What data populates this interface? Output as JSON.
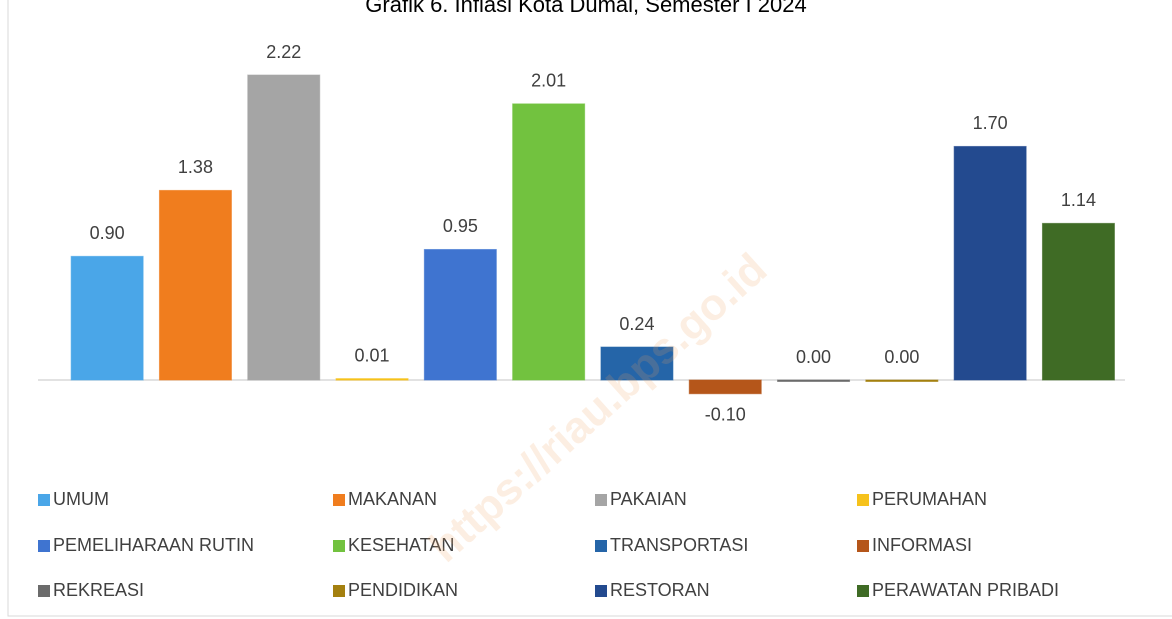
{
  "chart_data": {
    "type": "bar",
    "title": "Grafik 6. Inflasi Kota Dumai, Semester I 2024",
    "watermark": "https://riau.bps.go.id",
    "categories": [
      "UMUM",
      "MAKANAN",
      "PAKAIAN",
      "PERUMAHAN",
      "PEMELIHARAAN RUTIN",
      "KESEHATAN",
      "TRANSPORTASI",
      "INFORMASI",
      "REKREASI",
      "PENDIDIKAN",
      "RESTORAN",
      "PERAWATAN PRIBADI"
    ],
    "values": [
      0.9,
      1.38,
      2.22,
      0.01,
      0.95,
      2.01,
      0.24,
      -0.1,
      0,
      0,
      1.7,
      1.14
    ],
    "value_labels": [
      "0.90",
      "1.38",
      "2.22",
      "0.01",
      "0.95",
      "2.01",
      "0.24",
      "-0.10",
      "0.00",
      "0.00",
      "1.70",
      "1.14"
    ],
    "colors": [
      "#4aa6e8",
      "#f07d1e",
      "#a5a5a5",
      "#f6c21c",
      "#3f74d0",
      "#72c23f",
      "#2565a8",
      "#b5561a",
      "#6b6b6b",
      "#a4800f",
      "#234a8f",
      "#3f6b25"
    ],
    "legend": "bottom"
  }
}
